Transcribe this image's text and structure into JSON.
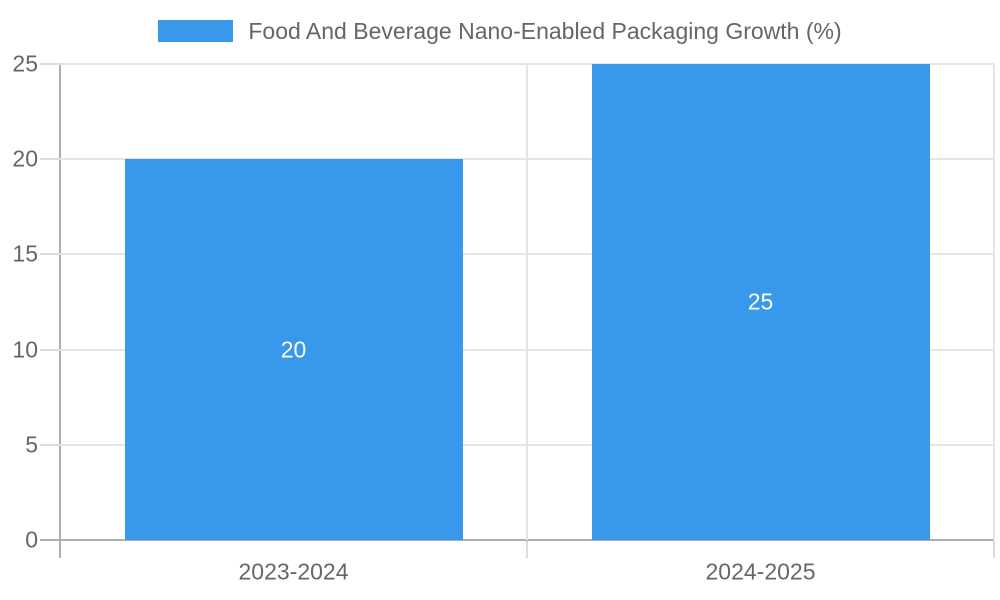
{
  "chart_data": {
    "type": "bar",
    "title": "Food And Beverage Nano-Enabled Packaging Growth (%)",
    "categories": [
      "2023-2024",
      "2024-2025"
    ],
    "values": [
      20,
      25
    ],
    "bar_value_labels": [
      "20",
      "25"
    ],
    "xlabel": "",
    "ylabel": "",
    "ylim": [
      0,
      25
    ],
    "yticks": [
      0,
      5,
      10,
      15,
      20,
      25
    ],
    "grid": true,
    "legend_position": "top",
    "colors": {
      "bar": "#3899ec",
      "axis": "#aeaeae",
      "gridline": "#e5e5e5",
      "tick": "#dcdcdc",
      "text": "#666666",
      "bar_label": "#ffffff",
      "background": "#ffffff"
    }
  }
}
